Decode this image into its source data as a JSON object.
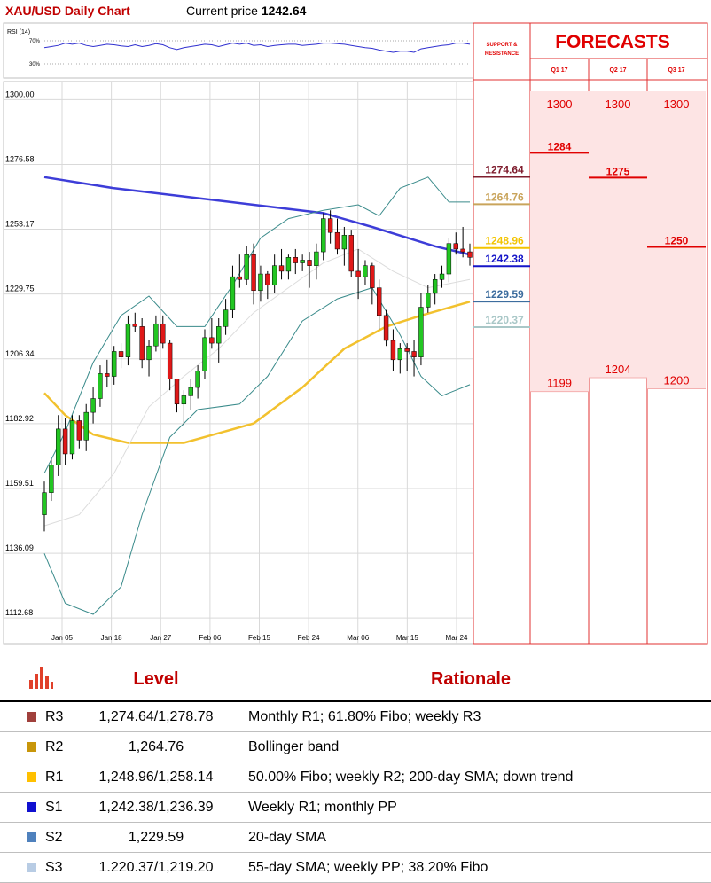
{
  "header": {
    "title": "XAU/USD Daily Chart",
    "price_label": "Current price",
    "price_value": "1242.64"
  },
  "rsi": {
    "label": "RSI (14)",
    "level_high": "70%",
    "level_low": "30%"
  },
  "forecasts": {
    "title": "FORECASTS",
    "sr_label_line1": "SUPPORT &",
    "sr_label_line2": "RESISTANCE",
    "quarters": [
      {
        "label": "Q1 17",
        "high": "1300",
        "mid": "1284",
        "low": "1199"
      },
      {
        "label": "Q2 17",
        "high": "1300",
        "mid": "1275",
        "low": "1204"
      },
      {
        "label": "Q3 17",
        "high": "1300",
        "mid": "1250",
        "low": "1200"
      }
    ]
  },
  "sr_levels": [
    {
      "value": "1274.64",
      "color": "#7f1d2e"
    },
    {
      "value": "1264.76",
      "color": "#c9a45b"
    },
    {
      "value": "1248.96",
      "color": "#f3c400"
    },
    {
      "value": "1242.38",
      "color": "#1515c8"
    },
    {
      "value": "1229.59",
      "color": "#3d6d9e"
    },
    {
      "value": "1220.37",
      "color": "#a9c7c7"
    }
  ],
  "table": {
    "header_level": "Level",
    "header_rationale": "Rationale",
    "rows": [
      {
        "code": "R3",
        "color": "#a0403c",
        "level": "1,274.64/1,278.78",
        "rationale": "Monthly R1; 61.80% Fibo; weekly R3"
      },
      {
        "code": "R2",
        "color": "#c8960a",
        "level": "1,264.76",
        "rationale": "Bollinger band"
      },
      {
        "code": "R1",
        "color": "#ffc000",
        "level": "1,248.96/1,258.14",
        "rationale": "50.00% Fibo; weekly R2; 200-day SMA; down trend"
      },
      {
        "code": "S1",
        "color": "#1010d0",
        "level": "1,242.38/1,236.39",
        "rationale": "Weekly R1; monthly PP"
      },
      {
        "code": "S2",
        "color": "#4f81bd",
        "level": "1,229.59",
        "rationale": "20-day SMA"
      },
      {
        "code": "S3",
        "color": "#b8cce4",
        "level": "1.220.37/1,219.20",
        "rationale": "55-day SMA; weekly PP; 38.20% Fibo"
      }
    ]
  },
  "chart_data": {
    "type": "candlestick",
    "y_ticks": [
      "1300.00",
      "1276.58",
      "1253.17",
      "1229.75",
      "1206.34",
      "1182.92",
      "1159.51",
      "1136.09",
      "1112.68"
    ],
    "x_ticks": [
      "Jan 05",
      "Jan 18",
      "Jan 27",
      "Feb 06",
      "Feb 15",
      "Feb 24",
      "Mar 06",
      "Mar 15",
      "Mar 24"
    ],
    "ylim": [
      1106,
      1303
    ],
    "candles": [
      [
        1150,
        1162,
        1144,
        1158
      ],
      [
        1158,
        1170,
        1155,
        1168
      ],
      [
        1168,
        1186,
        1164,
        1181
      ],
      [
        1181,
        1185,
        1168,
        1172
      ],
      [
        1172,
        1186,
        1170,
        1184
      ],
      [
        1184,
        1186,
        1174,
        1177
      ],
      [
        1177,
        1190,
        1173,
        1187
      ],
      [
        1187,
        1196,
        1183,
        1192
      ],
      [
        1192,
        1204,
        1189,
        1201
      ],
      [
        1201,
        1206,
        1196,
        1200
      ],
      [
        1200,
        1211,
        1197,
        1209
      ],
      [
        1209,
        1212,
        1203,
        1207
      ],
      [
        1207,
        1222,
        1204,
        1219
      ],
      [
        1219,
        1223,
        1216,
        1218
      ],
      [
        1218,
        1221,
        1203,
        1206
      ],
      [
        1206,
        1213,
        1200,
        1211
      ],
      [
        1211,
        1222,
        1209,
        1219
      ],
      [
        1219,
        1222,
        1210,
        1212
      ],
      [
        1212,
        1213,
        1195,
        1199
      ],
      [
        1199,
        1199,
        1187,
        1190
      ],
      [
        1190,
        1195,
        1182,
        1193
      ],
      [
        1193,
        1199,
        1188,
        1196
      ],
      [
        1196,
        1204,
        1192,
        1202
      ],
      [
        1202,
        1217,
        1199,
        1214
      ],
      [
        1214,
        1221,
        1210,
        1212
      ],
      [
        1212,
        1221,
        1205,
        1218
      ],
      [
        1218,
        1228,
        1215,
        1224
      ],
      [
        1224,
        1240,
        1221,
        1236
      ],
      [
        1236,
        1244,
        1232,
        1235
      ],
      [
        1235,
        1247,
        1233,
        1244
      ],
      [
        1244,
        1248,
        1226,
        1231
      ],
      [
        1231,
        1240,
        1227,
        1237
      ],
      [
        1237,
        1238,
        1228,
        1233
      ],
      [
        1233,
        1244,
        1230,
        1240
      ],
      [
        1240,
        1246,
        1235,
        1238
      ],
      [
        1238,
        1244,
        1235,
        1243
      ],
      [
        1243,
        1246,
        1237,
        1241
      ],
      [
        1241,
        1244,
        1238,
        1242
      ],
      [
        1242,
        1245,
        1232,
        1240
      ],
      [
        1240,
        1248,
        1235,
        1245
      ],
      [
        1245,
        1259,
        1242,
        1257
      ],
      [
        1257,
        1260,
        1248,
        1252
      ],
      [
        1252,
        1257,
        1244,
        1246
      ],
      [
        1246,
        1254,
        1240,
        1251
      ],
      [
        1251,
        1253,
        1236,
        1238
      ],
      [
        1238,
        1246,
        1228,
        1236
      ],
      [
        1236,
        1242,
        1233,
        1240
      ],
      [
        1240,
        1241,
        1226,
        1232
      ],
      [
        1232,
        1235,
        1217,
        1222
      ],
      [
        1222,
        1224,
        1211,
        1213
      ],
      [
        1213,
        1217,
        1202,
        1206
      ],
      [
        1206,
        1212,
        1201,
        1210
      ],
      [
        1210,
        1212,
        1202,
        1209
      ],
      [
        1209,
        1213,
        1200,
        1207
      ],
      [
        1207,
        1230,
        1204,
        1225
      ],
      [
        1225,
        1233,
        1223,
        1230
      ],
      [
        1230,
        1237,
        1226,
        1235
      ],
      [
        1235,
        1240,
        1232,
        1237
      ],
      [
        1237,
        1250,
        1234,
        1248
      ],
      [
        1248,
        1252,
        1244,
        1246
      ],
      [
        1246,
        1254,
        1243,
        1245
      ],
      [
        1245,
        1248,
        1240,
        1243
      ]
    ],
    "series": [
      {
        "name": "",
        "color": "#3d3dd8",
        "points": [
          [
            0,
            1272
          ],
          [
            10,
            1268
          ],
          [
            20,
            1265
          ],
          [
            30,
            1262
          ],
          [
            40,
            1259
          ],
          [
            47,
            1254
          ],
          [
            56,
            1247
          ],
          [
            61,
            1244
          ]
        ]
      },
      {
        "name": "",
        "color": "#f2c12e",
        "points": [
          [
            0,
            1194
          ],
          [
            3,
            1186
          ],
          [
            7,
            1179
          ],
          [
            12,
            1176
          ],
          [
            20,
            1176
          ],
          [
            30,
            1183
          ],
          [
            37,
            1196
          ],
          [
            43,
            1210
          ],
          [
            49,
            1218
          ],
          [
            54,
            1222
          ],
          [
            61,
            1227
          ]
        ]
      },
      {
        "name": "",
        "color": "#dcdcdc",
        "points": [
          [
            0,
            1146
          ],
          [
            5,
            1150
          ],
          [
            10,
            1165
          ],
          [
            15,
            1189
          ],
          [
            20,
            1200
          ],
          [
            25,
            1210
          ],
          [
            30,
            1223
          ],
          [
            35,
            1232
          ],
          [
            40,
            1241
          ],
          [
            45,
            1246
          ],
          [
            50,
            1238
          ],
          [
            55,
            1232
          ],
          [
            61,
            1235
          ]
        ]
      },
      {
        "name": "",
        "color": "#3a8b8b",
        "points": [
          [
            0,
            1136
          ],
          [
            3,
            1118
          ],
          [
            7,
            1114
          ],
          [
            11,
            1124
          ],
          [
            14,
            1150
          ],
          [
            18,
            1178
          ],
          [
            22,
            1188
          ],
          [
            28,
            1190
          ],
          [
            32,
            1200
          ],
          [
            37,
            1220
          ],
          [
            42,
            1228
          ],
          [
            47,
            1232
          ],
          [
            51,
            1215
          ],
          [
            54,
            1200
          ],
          [
            57,
            1193
          ],
          [
            61,
            1197
          ]
        ]
      },
      {
        "name": "",
        "color": "#3a8b8b",
        "points": [
          [
            0,
            1165
          ],
          [
            3,
            1180
          ],
          [
            7,
            1205
          ],
          [
            11,
            1222
          ],
          [
            15,
            1229
          ],
          [
            19,
            1218
          ],
          [
            23,
            1218
          ],
          [
            27,
            1233
          ],
          [
            31,
            1250
          ],
          [
            35,
            1257
          ],
          [
            40,
            1260
          ],
          [
            45,
            1262
          ],
          [
            48,
            1258
          ],
          [
            51,
            1268
          ],
          [
            55,
            1272
          ],
          [
            58,
            1263
          ],
          [
            61,
            1263
          ]
        ]
      }
    ],
    "rsi_values": [
      58,
      60,
      62,
      66,
      64,
      66,
      62,
      60,
      62,
      64,
      63,
      61,
      60,
      63,
      60,
      62,
      65,
      63,
      58,
      55,
      58,
      60,
      62,
      64,
      63,
      60,
      63,
      66,
      64,
      66,
      62,
      63,
      60,
      62,
      63,
      64,
      64,
      62,
      63,
      64,
      66,
      66,
      65,
      64,
      62,
      60,
      58,
      57,
      54,
      52,
      50,
      52,
      52,
      50,
      56,
      58,
      60,
      62,
      63,
      66,
      66,
      64
    ]
  }
}
